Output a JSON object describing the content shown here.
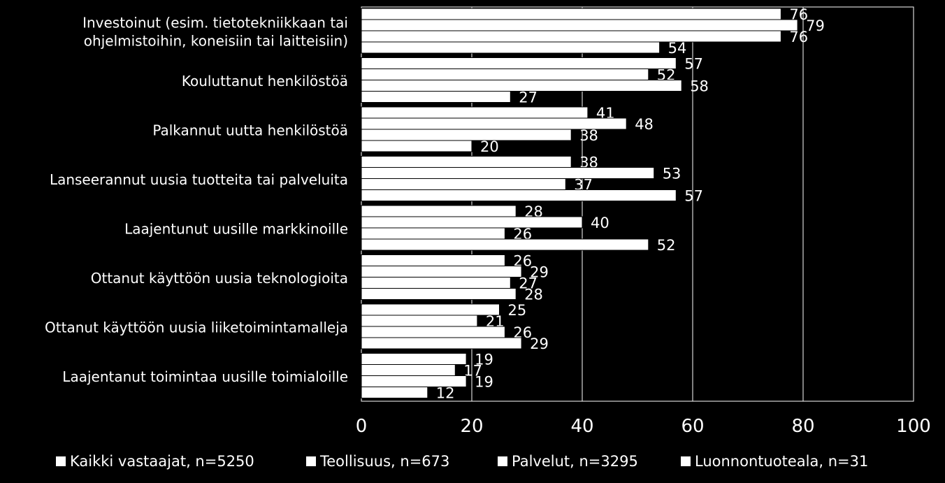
{
  "chart_data": {
    "type": "bar",
    "orientation": "horizontal",
    "categories": [
      [
        "Investoinut  (esim. tietotekniikkaan tai",
        "ohjelmistoihin, koneisiin tai laitteisiin)"
      ],
      [
        "Kouluttanut henkilöstöä"
      ],
      [
        "Palkannut uutta henkilöstöä"
      ],
      [
        "Lanseerannut uusia tuotteita tai palveluita"
      ],
      [
        "Laajentunut uusille markkinoille"
      ],
      [
        "Ottanut käyttöön uusia teknologioita"
      ],
      [
        "Ottanut käyttöön uusia liiketoimintamalleja"
      ],
      [
        "Laajentanut toimintaa uusille toimialoille"
      ]
    ],
    "series": [
      {
        "name": "Kaikki vastaajat, n=5250",
        "values": [
          76,
          57,
          41,
          38,
          28,
          26,
          25,
          19
        ]
      },
      {
        "name": "Teollisuus, n=673",
        "values": [
          79,
          52,
          48,
          53,
          40,
          29,
          21,
          17
        ]
      },
      {
        "name": "Palvelut, n=3295",
        "values": [
          76,
          58,
          38,
          37,
          26,
          27,
          26,
          19
        ]
      },
      {
        "name": "Luonnontuoteala, n=31",
        "values": [
          54,
          27,
          20,
          57,
          52,
          28,
          29,
          12
        ]
      }
    ],
    "xlim": [
      0,
      100
    ],
    "xticks": [
      "0",
      "20",
      "40",
      "60",
      "80",
      "100"
    ],
    "grid": true,
    "legend_position": "bottom",
    "colors": {
      "background": "#000000",
      "bar": "#ffffff",
      "text": "#ffffff",
      "grid": "#ffffff"
    }
  }
}
